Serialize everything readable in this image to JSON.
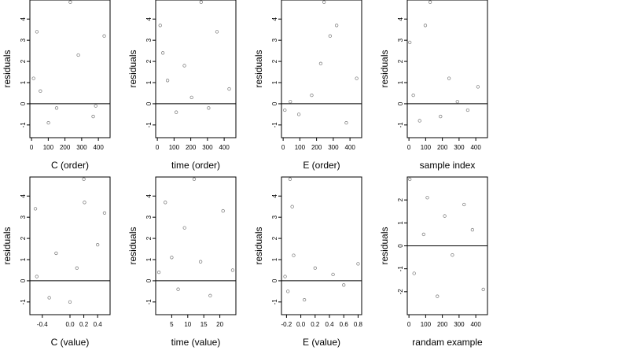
{
  "chart_data": [
    {
      "type": "scatter",
      "xlabel": "C (order)",
      "ylabel": "residuals",
      "xlim": [
        -10,
        470
      ],
      "ylim": [
        -1.6,
        4.9
      ],
      "xticks": [
        0,
        100,
        200,
        300,
        400
      ],
      "yticks": [
        -1,
        0,
        1,
        2,
        3,
        4
      ],
      "hline": 0,
      "x": [
        12,
        32,
        53,
        101,
        150,
        232,
        280,
        369,
        384,
        435
      ],
      "y": [
        1.2,
        3.4,
        0.6,
        -0.9,
        -0.2,
        4.8,
        2.3,
        -0.6,
        -0.1,
        3.2
      ]
    },
    {
      "type": "scatter",
      "xlabel": "time (order)",
      "ylabel": "residuals",
      "xlim": [
        -10,
        470
      ],
      "ylim": [
        -1.6,
        4.9
      ],
      "xticks": [
        0,
        100,
        200,
        300,
        400
      ],
      "yticks": [
        -1,
        0,
        1,
        2,
        3,
        4
      ],
      "hline": 0,
      "x": [
        17,
        33,
        61,
        113,
        162,
        205,
        262,
        307,
        357,
        430
      ],
      "y": [
        3.7,
        2.4,
        1.1,
        -0.4,
        1.8,
        0.3,
        4.8,
        -0.2,
        3.4,
        0.7
      ],
      "note": ""
    },
    {
      "type": "scatter",
      "xlabel": "E (order)",
      "ylabel": "residuals",
      "xlim": [
        -10,
        470
      ],
      "ylim": [
        -1.6,
        4.9
      ],
      "xticks": [
        0,
        100,
        200,
        300,
        400
      ],
      "yticks": [
        -1,
        0,
        1,
        2,
        3,
        4
      ],
      "hline": 0,
      "x": [
        10,
        43,
        94,
        171,
        225,
        245,
        281,
        320,
        378,
        440
      ],
      "y": [
        -0.3,
        0.1,
        -0.5,
        0.4,
        1.9,
        4.8,
        3.2,
        3.7,
        -0.9,
        1.2
      ]
    },
    {
      "type": "scatter",
      "xlabel": "sample index",
      "ylabel": "residuals",
      "xlim": [
        -10,
        470
      ],
      "ylim": [
        -1.6,
        4.9
      ],
      "xticks": [
        0,
        100,
        200,
        300,
        400
      ],
      "yticks": [
        -1,
        0,
        1,
        2,
        3,
        4
      ],
      "hline": 0,
      "x": [
        5,
        26,
        64,
        98,
        127,
        189,
        240,
        290,
        352,
        413
      ],
      "y": [
        2.9,
        0.4,
        -0.8,
        3.7,
        4.8,
        -0.6,
        1.2,
        0.1,
        -0.3,
        0.8
      ]
    },
    {
      "type": "scatter",
      "xlabel": "C (value)",
      "ylabel": "residuals",
      "xlim": [
        -0.58,
        0.58
      ],
      "ylim": [
        -1.6,
        4.9
      ],
      "xticks": [
        -0.4,
        0.0,
        0.2,
        0.4
      ],
      "xtick_labels": [
        "-0.4",
        "0.0",
        "0.2",
        "0.4"
      ],
      "yticks": [
        -1,
        0,
        1,
        2,
        3,
        4
      ],
      "hline": 0,
      "x": [
        -0.5,
        -0.48,
        -0.3,
        -0.2,
        0.0,
        0.1,
        0.2,
        0.21,
        0.4,
        0.5
      ],
      "y": [
        3.4,
        0.2,
        -0.8,
        1.3,
        -1.0,
        0.6,
        4.8,
        3.7,
        1.7,
        3.2
      ]
    },
    {
      "type": "scatter",
      "xlabel": "time (value)",
      "ylabel": "residuals",
      "xlim": [
        0,
        25
      ],
      "ylim": [
        -1.6,
        4.9
      ],
      "xticks": [
        5,
        10,
        15,
        20
      ],
      "yticks": [
        -1,
        0,
        1,
        2,
        3,
        4
      ],
      "hline": 0,
      "x": [
        1,
        3,
        5,
        7,
        9,
        12,
        14,
        17,
        21,
        24
      ],
      "y": [
        0.4,
        3.7,
        1.1,
        -0.4,
        2.5,
        4.8,
        0.9,
        -0.7,
        3.3,
        0.5
      ]
    },
    {
      "type": "scatter",
      "xlabel": "E (value)",
      "ylabel": "residuals",
      "xlim": [
        -0.27,
        0.85
      ],
      "ylim": [
        -1.6,
        4.9
      ],
      "xticks": [
        -0.2,
        0.0,
        0.2,
        0.4,
        0.6,
        0.8
      ],
      "xtick_labels": [
        "-0.2",
        "0.0",
        "0.2",
        "0.4",
        "0.6",
        "0.8"
      ],
      "yticks": [
        -1,
        0,
        1,
        2,
        3,
        4
      ],
      "hline": 0,
      "x": [
        -0.22,
        -0.18,
        -0.15,
        -0.12,
        -0.1,
        0.05,
        0.2,
        0.45,
        0.6,
        0.8
      ],
      "y": [
        0.2,
        -0.5,
        4.8,
        3.5,
        1.2,
        -0.9,
        0.6,
        0.3,
        -0.2,
        0.8
      ]
    },
    {
      "type": "scatter",
      "xlabel": "randam example",
      "ylabel": "residuals",
      "xlim": [
        -10,
        470
      ],
      "ylim": [
        -3.0,
        3.0
      ],
      "xticks": [
        0,
        100,
        200,
        300,
        400
      ],
      "yticks": [
        -2,
        -1,
        0,
        1,
        2
      ],
      "hline": 0,
      "x": [
        5,
        31,
        88,
        110,
        170,
        214,
        260,
        330,
        380,
        445
      ],
      "y": [
        2.9,
        -1.2,
        0.5,
        2.1,
        -2.2,
        1.3,
        -0.4,
        1.8,
        0.7,
        -1.9
      ]
    }
  ]
}
